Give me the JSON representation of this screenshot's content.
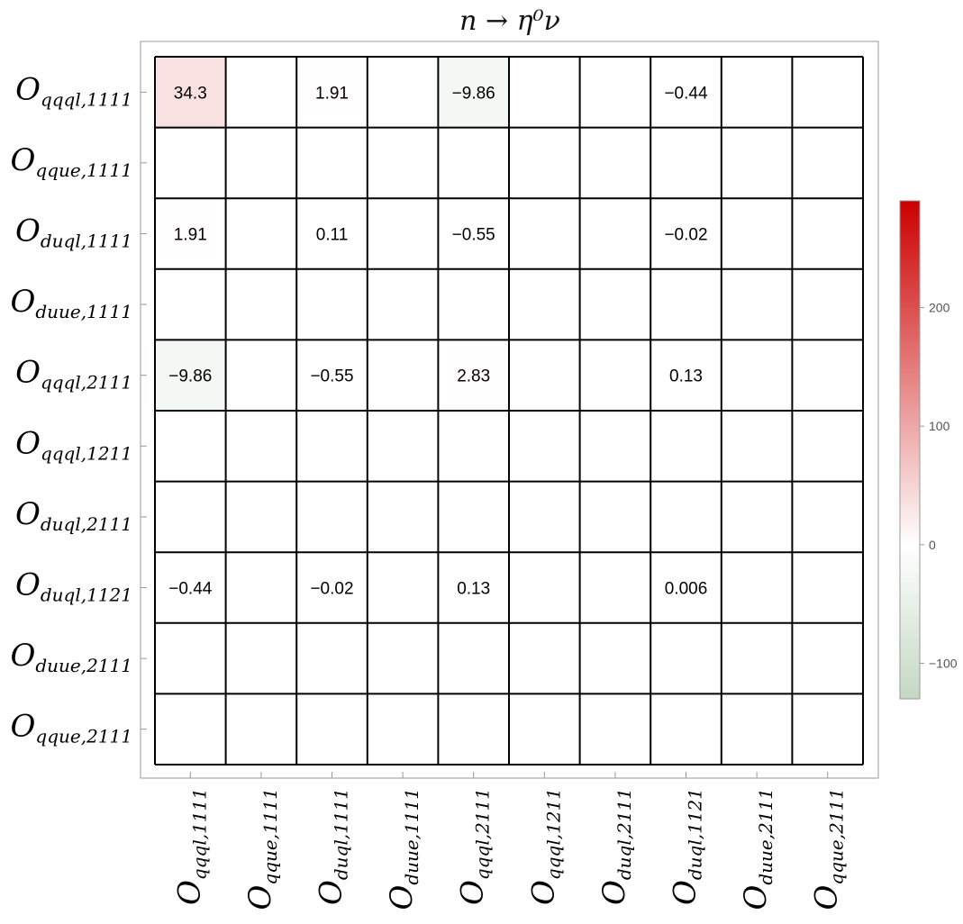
{
  "chart_data": {
    "type": "heatmap",
    "title": "n → η⁰ν",
    "labels": [
      {
        "base": "O",
        "sub": "qqql,1111"
      },
      {
        "base": "O",
        "sub": "qque,1111"
      },
      {
        "base": "O",
        "sub": "duql,1111"
      },
      {
        "base": "O",
        "sub": "duue,1111"
      },
      {
        "base": "O",
        "sub": "qqql,2111"
      },
      {
        "base": "O",
        "sub": "qqql,1211"
      },
      {
        "base": "O",
        "sub": "duql,2111"
      },
      {
        "base": "O",
        "sub": "duql,1121"
      },
      {
        "base": "O",
        "sub": "duue,2111"
      },
      {
        "base": "O",
        "sub": "qque,2111"
      }
    ],
    "values": [
      [
        34.3,
        null,
        1.91,
        null,
        -9.86,
        null,
        null,
        -0.44,
        null,
        null
      ],
      [
        null,
        null,
        null,
        null,
        null,
        null,
        null,
        null,
        null,
        null
      ],
      [
        1.91,
        null,
        0.11,
        null,
        -0.55,
        null,
        null,
        -0.02,
        null,
        null
      ],
      [
        null,
        null,
        null,
        null,
        null,
        null,
        null,
        null,
        null,
        null
      ],
      [
        -9.86,
        null,
        -0.55,
        null,
        2.83,
        null,
        null,
        0.13,
        null,
        null
      ],
      [
        null,
        null,
        null,
        null,
        null,
        null,
        null,
        null,
        null,
        null
      ],
      [
        null,
        null,
        null,
        null,
        null,
        null,
        null,
        null,
        null,
        null
      ],
      [
        -0.44,
        null,
        -0.02,
        null,
        0.13,
        null,
        null,
        0.006,
        null,
        null
      ],
      [
        null,
        null,
        null,
        null,
        null,
        null,
        null,
        null,
        null,
        null
      ],
      [
        null,
        null,
        null,
        null,
        null,
        null,
        null,
        null,
        null,
        null
      ]
    ],
    "cell_text": [
      [
        "34.3",
        "",
        "1.91",
        "",
        "−9.86",
        "",
        "",
        "−0.44",
        "",
        ""
      ],
      [
        "",
        "",
        "",
        "",
        "",
        "",
        "",
        "",
        "",
        ""
      ],
      [
        "1.91",
        "",
        "0.11",
        "",
        "−0.55",
        "",
        "",
        "−0.02",
        "",
        ""
      ],
      [
        "",
        "",
        "",
        "",
        "",
        "",
        "",
        "",
        "",
        ""
      ],
      [
        "−9.86",
        "",
        "−0.55",
        "",
        "2.83",
        "",
        "",
        "0.13",
        "",
        ""
      ],
      [
        "",
        "",
        "",
        "",
        "",
        "",
        "",
        "",
        "",
        ""
      ],
      [
        "",
        "",
        "",
        "",
        "",
        "",
        "",
        "",
        "",
        ""
      ],
      [
        "−0.44",
        "",
        "−0.02",
        "",
        "0.13",
        "",
        "",
        "0.006",
        "",
        ""
      ],
      [
        "",
        "",
        "",
        "",
        "",
        "",
        "",
        "",
        "",
        ""
      ],
      [
        "",
        "",
        "",
        "",
        "",
        "",
        "",
        "",
        "",
        ""
      ]
    ],
    "colorbar": {
      "min": -130,
      "max": 290,
      "ticks": [
        {
          "value": 200,
          "label": "200"
        },
        {
          "value": 100,
          "label": "100"
        },
        {
          "value": 0,
          "label": "0"
        },
        {
          "value": -100,
          "label": "−100"
        }
      ],
      "positive_color": "#cc0000",
      "zero_color": "#ffffff",
      "negative_color": "#6b9e6b"
    }
  }
}
